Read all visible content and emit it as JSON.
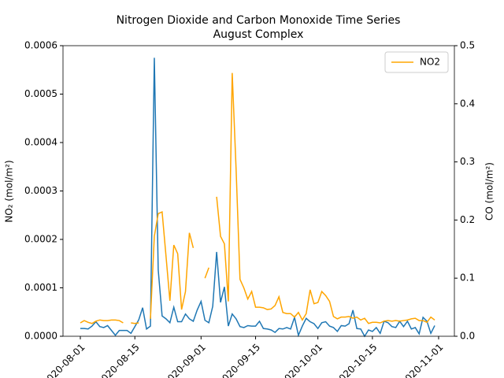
{
  "chart_data": {
    "type": "line",
    "title": "Nitrogen Dioxide and Carbon Monoxide Time Series",
    "subtitle": "August Complex",
    "ylabel": "NO₂ (mol/m²)",
    "y2label": "CO (mol/m²)",
    "x": [
      0,
      1,
      2,
      3,
      4,
      5,
      6,
      7,
      8,
      9,
      10,
      11,
      12,
      13,
      14,
      15,
      16,
      17,
      18,
      19,
      20,
      21,
      22,
      23,
      24,
      25,
      26,
      27,
      28,
      29,
      30,
      31,
      32,
      33,
      34,
      35,
      36,
      37,
      38,
      39,
      40,
      41,
      42,
      43,
      44,
      45,
      46,
      47,
      48,
      49,
      50,
      51,
      52,
      53,
      54,
      55,
      56,
      57,
      58,
      59,
      60,
      61,
      62,
      63,
      64,
      65,
      66,
      67,
      68,
      69,
      70,
      71,
      72,
      73,
      74,
      75,
      76,
      77,
      78,
      79,
      80,
      81,
      82,
      83,
      84,
      85,
      86,
      87,
      88,
      89,
      90,
      91
    ],
    "xlim": [
      -4.45,
      96.05
    ],
    "xticks": [
      {
        "value": 0,
        "label": "2020-08-01"
      },
      {
        "value": 14,
        "label": "2020-08-15"
      },
      {
        "value": 31,
        "label": "2020-09-01"
      },
      {
        "value": 45,
        "label": "2020-09-15"
      },
      {
        "value": 61,
        "label": "2020-10-01"
      },
      {
        "value": 75,
        "label": "2020-10-15"
      },
      {
        "value": 92,
        "label": "2020-11-01"
      }
    ],
    "ylim": [
      0,
      0.0006
    ],
    "yticks": [
      {
        "value": 0,
        "label": "0.0000"
      },
      {
        "value": 0.0001,
        "label": "0.0001"
      },
      {
        "value": 0.0002,
        "label": "0.0002"
      },
      {
        "value": 0.0003,
        "label": "0.0003"
      },
      {
        "value": 0.0004,
        "label": "0.0004"
      },
      {
        "value": 0.0005,
        "label": "0.0005"
      },
      {
        "value": 0.0006,
        "label": "0.0006"
      }
    ],
    "y2lim": [
      0,
      0.5
    ],
    "y2ticks": [
      {
        "value": 0,
        "label": "0.0"
      },
      0.1,
      0.2,
      0.3,
      0.4,
      0.5
    ],
    "legend": "upper right",
    "series": [
      {
        "color": "#1f77b4",
        "axis": "y",
        "values": [
          1.6e-05,
          1.6e-05,
          1.5e-05,
          2.1e-05,
          3e-05,
          2e-05,
          1.8e-05,
          2.2e-05,
          1.2e-05,
          2e-06,
          1.2e-05,
          1.2e-05,
          1.2e-05,
          6e-06,
          2e-05,
          3.4e-05,
          5.9e-05,
          1.5e-05,
          2.1e-05,
          0.000575,
          0.000137,
          4.2e-05,
          3.6e-05,
          2.8e-05,
          6e-05,
          3e-05,
          3e-05,
          4.6e-05,
          3.6e-05,
          3.1e-05,
          5.4e-05,
          7.2e-05,
          3.3e-05,
          2.8e-05,
          6.2e-05,
          0.000174,
          7e-05,
          0.000102,
          2.1e-05,
          4.6e-05,
          3.6e-05,
          2e-05,
          1.8e-05,
          2.2e-05,
          2.1e-05,
          2.1e-05,
          3.1e-05,
          1.6e-05,
          1.5e-05,
          1.3e-05,
          8e-06,
          1.6e-05,
          1.5e-05,
          1.8e-05,
          1.5e-05,
          3.9e-05,
          2e-06,
          2.1e-05,
          3.7e-05,
          3e-05,
          2.6e-05,
          1.6e-05,
          2.8e-05,
          3e-05,
          2.1e-05,
          1.8e-05,
          1e-05,
          2.2e-05,
          2.1e-05,
          2.6e-05,
          5.4e-05,
          1.6e-05,
          1.5e-05,
          0,
          1.3e-05,
          1e-05,
          1.8e-05,
          6e-06,
          3.1e-05,
          2.8e-05,
          2e-05,
          1.8e-05,
          3.1e-05,
          2e-05,
          3.1e-05,
          1.5e-05,
          1.8e-05,
          5e-06,
          3.9e-05,
          3.1e-05,
          6e-06,
          2.2e-05
        ]
      },
      {
        "name": "NO2",
        "color": "#ffa500",
        "axis": "y2",
        "values": [
          0.023,
          0.027,
          0.024,
          0.022,
          0.026,
          0.028,
          0.027,
          0.027,
          0.028,
          0.028,
          0.027,
          0.023,
          null,
          0.023,
          0.022,
          0.023,
          null,
          null,
          0.03,
          0.172,
          0.211,
          0.214,
          0.138,
          0.061,
          0.157,
          0.142,
          0.046,
          0.077,
          0.178,
          0.152,
          null,
          null,
          0.1,
          0.118,
          null,
          0.24,
          0.172,
          0.159,
          0.06,
          0.453,
          0.287,
          0.098,
          0.083,
          0.064,
          0.077,
          0.05,
          0.05,
          0.049,
          0.046,
          0.047,
          0.053,
          0.068,
          0.041,
          0.039,
          0.039,
          0.033,
          0.041,
          0.028,
          0.039,
          0.08,
          0.056,
          0.058,
          0.077,
          0.07,
          0.06,
          0.034,
          0.03,
          0.033,
          0.033,
          0.034,
          0.031,
          0.033,
          0.028,
          0.031,
          0.022,
          0.024,
          0.024,
          0.023,
          0.026,
          0.027,
          0.026,
          0.027,
          0.026,
          0.027,
          0.028,
          0.03,
          0.031,
          0.027,
          0.027,
          0.024,
          0.033,
          0.028
        ]
      }
    ]
  }
}
